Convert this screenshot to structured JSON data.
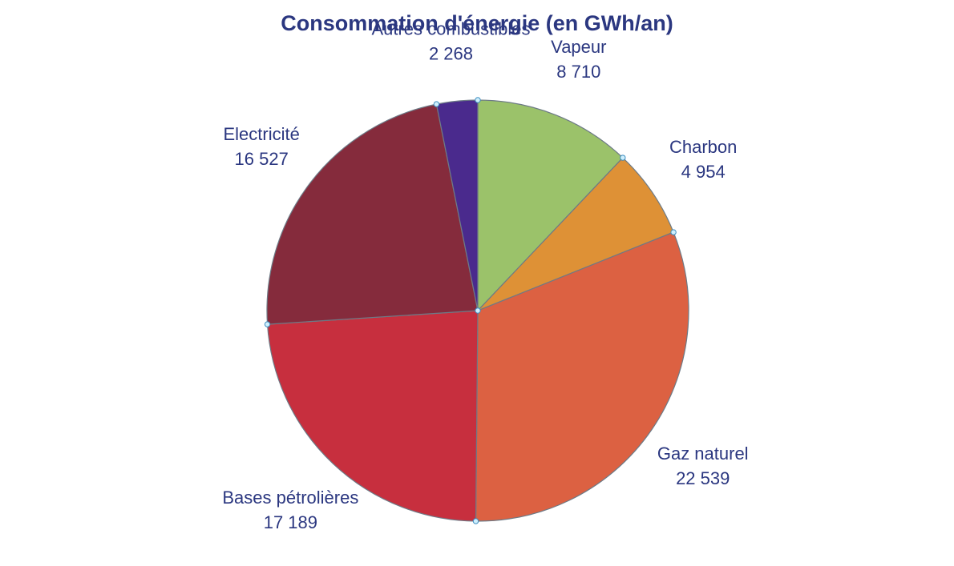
{
  "chart_data": {
    "type": "pie",
    "title": "Consommation d'énergie (en GWh/an)",
    "slices": [
      {
        "label": "Vapeur",
        "value": 8710,
        "value_text": "8 710",
        "color": "#9bc26a"
      },
      {
        "label": "Charbon",
        "value": 4954,
        "value_text": "4 954",
        "color": "#de9136"
      },
      {
        "label": "Gaz naturel",
        "value": 22539,
        "value_text": "22 539",
        "color": "#dc6142"
      },
      {
        "label": "Bases pétrolières",
        "value": 17189,
        "value_text": "17 189",
        "color": "#c72f3e"
      },
      {
        "label": "Electricité",
        "value": 16527,
        "value_text": "16 527",
        "color": "#852b3c"
      },
      {
        "label": "Autres combustibles",
        "value": 2268,
        "value_text": "2 268",
        "color": "#4a2a8d"
      }
    ],
    "start_angle": "12 o'clock",
    "direction": "clockwise",
    "labels": "outside, name and value",
    "legend": "none"
  }
}
